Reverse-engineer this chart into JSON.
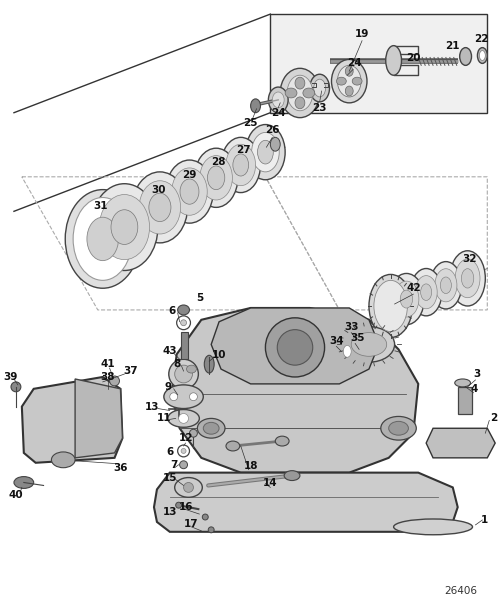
{
  "bg_color": "#ffffff",
  "fig_width": 5.0,
  "fig_height": 6.1,
  "watermark": "26406",
  "label_color": "#111111",
  "line_color": "#333333",
  "part_color": "#cccccc",
  "part_edge": "#444444"
}
